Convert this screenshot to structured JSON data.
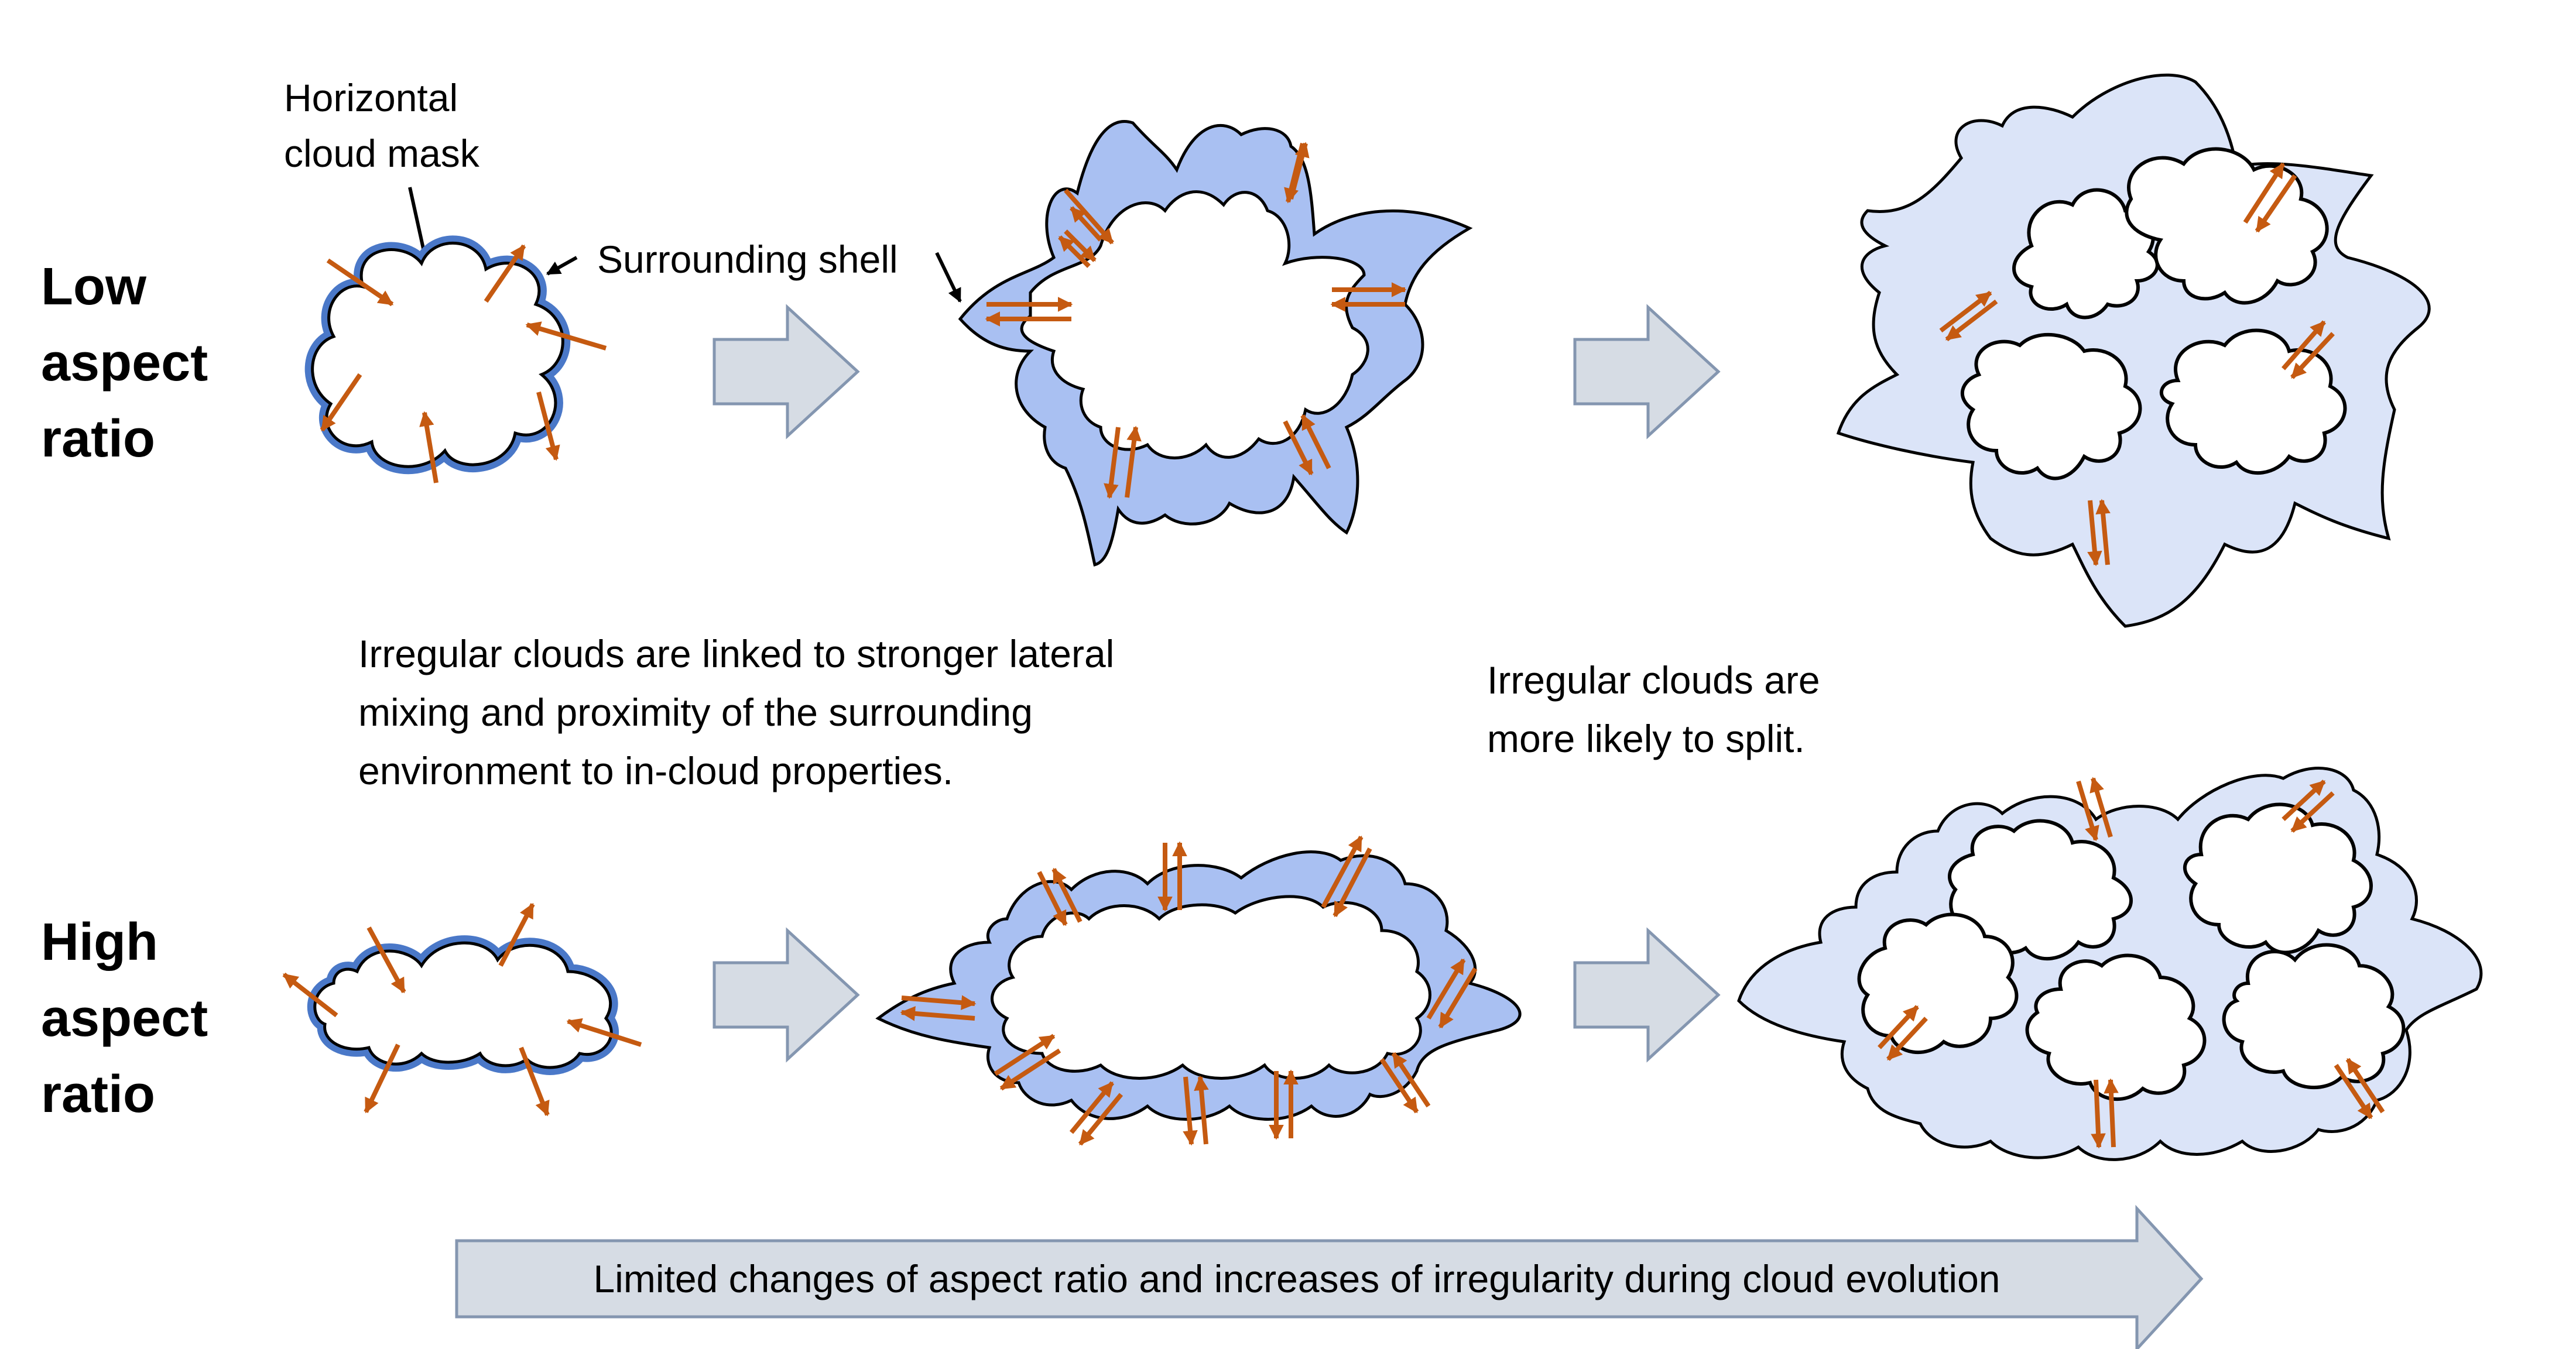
{
  "rows": {
    "low": [
      "Low",
      "aspect",
      "ratio"
    ],
    "high": [
      "High",
      "aspect",
      "ratio"
    ]
  },
  "labels": {
    "mask": [
      "Horizontal",
      "cloud mask"
    ],
    "shell": "Surrounding shell"
  },
  "notes": {
    "mixing": [
      "Irregular clouds are linked to stronger lateral",
      "mixing and proximity of the surrounding",
      "environment to in-cloud properties."
    ],
    "split": [
      "Irregular clouds are",
      "more likely to split."
    ]
  },
  "evolution_banner": "Limited changes of aspect ratio and increases of irregularity during cloud evolution",
  "colors": {
    "shell_strong": "#a9c0f2",
    "shell_light": "#dbe4f8",
    "shell_outline_blue": "#4a78c8",
    "flux_arrow": "#c55a11",
    "step_arrow_fill": "#d6dce4",
    "step_arrow_stroke": "#8496b0"
  }
}
